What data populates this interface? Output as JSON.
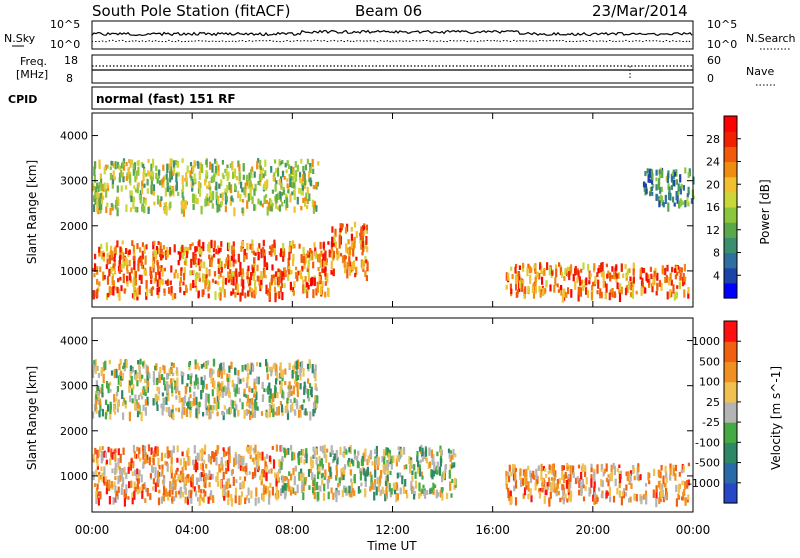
{
  "header": {
    "title": "South Pole Station (fitACF)",
    "beam": "Beam 06",
    "date": "23/Mar/2014"
  },
  "noise_panel": {
    "left_label": "N.Sky",
    "left_ticks": [
      "10^5",
      "10^0"
    ],
    "right_ticks": [
      "10^5",
      "10^0"
    ],
    "right_label": "N.Search"
  },
  "freq_panel": {
    "left_label_1": "Freq.",
    "left_label_2": "[MHz]",
    "left_ticks": [
      "18",
      "8"
    ],
    "right_ticks": [
      "60",
      "0"
    ],
    "right_label": "Nave"
  },
  "cpid_panel": {
    "label": "CPID",
    "text": "normal (fast) 151 RF"
  },
  "chart_data": [
    {
      "type": "heatmap",
      "panel": "power",
      "ylabel": "Slant Range [km]",
      "ylim": [
        200,
        4500
      ],
      "yticks": [
        "1000",
        "2000",
        "3000",
        "4000"
      ],
      "xlim": [
        0,
        24
      ],
      "colorbar": {
        "label": "Power [dB]",
        "ticks": [
          "28",
          "24",
          "20",
          "16",
          "12",
          "8",
          "4"
        ],
        "range": [
          0,
          32
        ],
        "colors": [
          "#0000ff",
          "#1c44a8",
          "#2e6fa0",
          "#3c8f6e",
          "#5aa84a",
          "#8cc63c",
          "#c8d83a",
          "#f0c030",
          "#f08c10",
          "#f05a0a",
          "#f02000",
          "#ff0000"
        ]
      },
      "features": [
        {
          "range_km": [
            500,
            1700
          ],
          "time_h": [
            0,
            9.5
          ],
          "level": "high"
        },
        {
          "range_km": [
            900,
            2100
          ],
          "time_h": [
            9.5,
            11
          ],
          "level": "high"
        },
        {
          "range_km": [
            500,
            1200
          ],
          "time_h": [
            16.5,
            23.8
          ],
          "level": "high"
        },
        {
          "range_km": [
            2400,
            3500
          ],
          "time_h": [
            0,
            9
          ],
          "level": "medium"
        },
        {
          "range_km": [
            2500,
            3300
          ],
          "time_h": [
            22,
            24
          ],
          "level": "low"
        }
      ]
    },
    {
      "type": "heatmap",
      "panel": "velocity",
      "ylabel": "Slant Range [km]",
      "ylim": [
        200,
        4500
      ],
      "yticks": [
        "1000",
        "2000",
        "3000",
        "4000"
      ],
      "xlim": [
        0,
        24
      ],
      "xticks": [
        "00:00",
        "04:00",
        "08:00",
        "12:00",
        "16:00",
        "20:00",
        "00:00"
      ],
      "xlabel": "Time UT",
      "colorbar": {
        "label": "Velocity [m s^-1]",
        "ticks": [
          "1000",
          "500",
          "100",
          "25",
          "-25",
          "-100",
          "-500",
          "-1000"
        ],
        "range": [
          -1000,
          1000
        ],
        "colors": [
          "#2846c8",
          "#2a6aa8",
          "#2e8868",
          "#44aa44",
          "#b4b4b4",
          "#f0c050",
          "#f09020",
          "#f06010",
          "#ff1010"
        ]
      },
      "features": [
        {
          "range_km": [
            500,
            1700
          ],
          "time_h": [
            0,
            7.5
          ],
          "level": "negative"
        },
        {
          "range_km": [
            600,
            1700
          ],
          "time_h": [
            7.5,
            14.5
          ],
          "level": "mixed"
        },
        {
          "range_km": [
            500,
            1300
          ],
          "time_h": [
            16.5,
            23.8
          ],
          "level": "negative"
        },
        {
          "range_km": [
            2400,
            3600
          ],
          "time_h": [
            0,
            9
          ],
          "level": "mixed"
        }
      ]
    }
  ]
}
